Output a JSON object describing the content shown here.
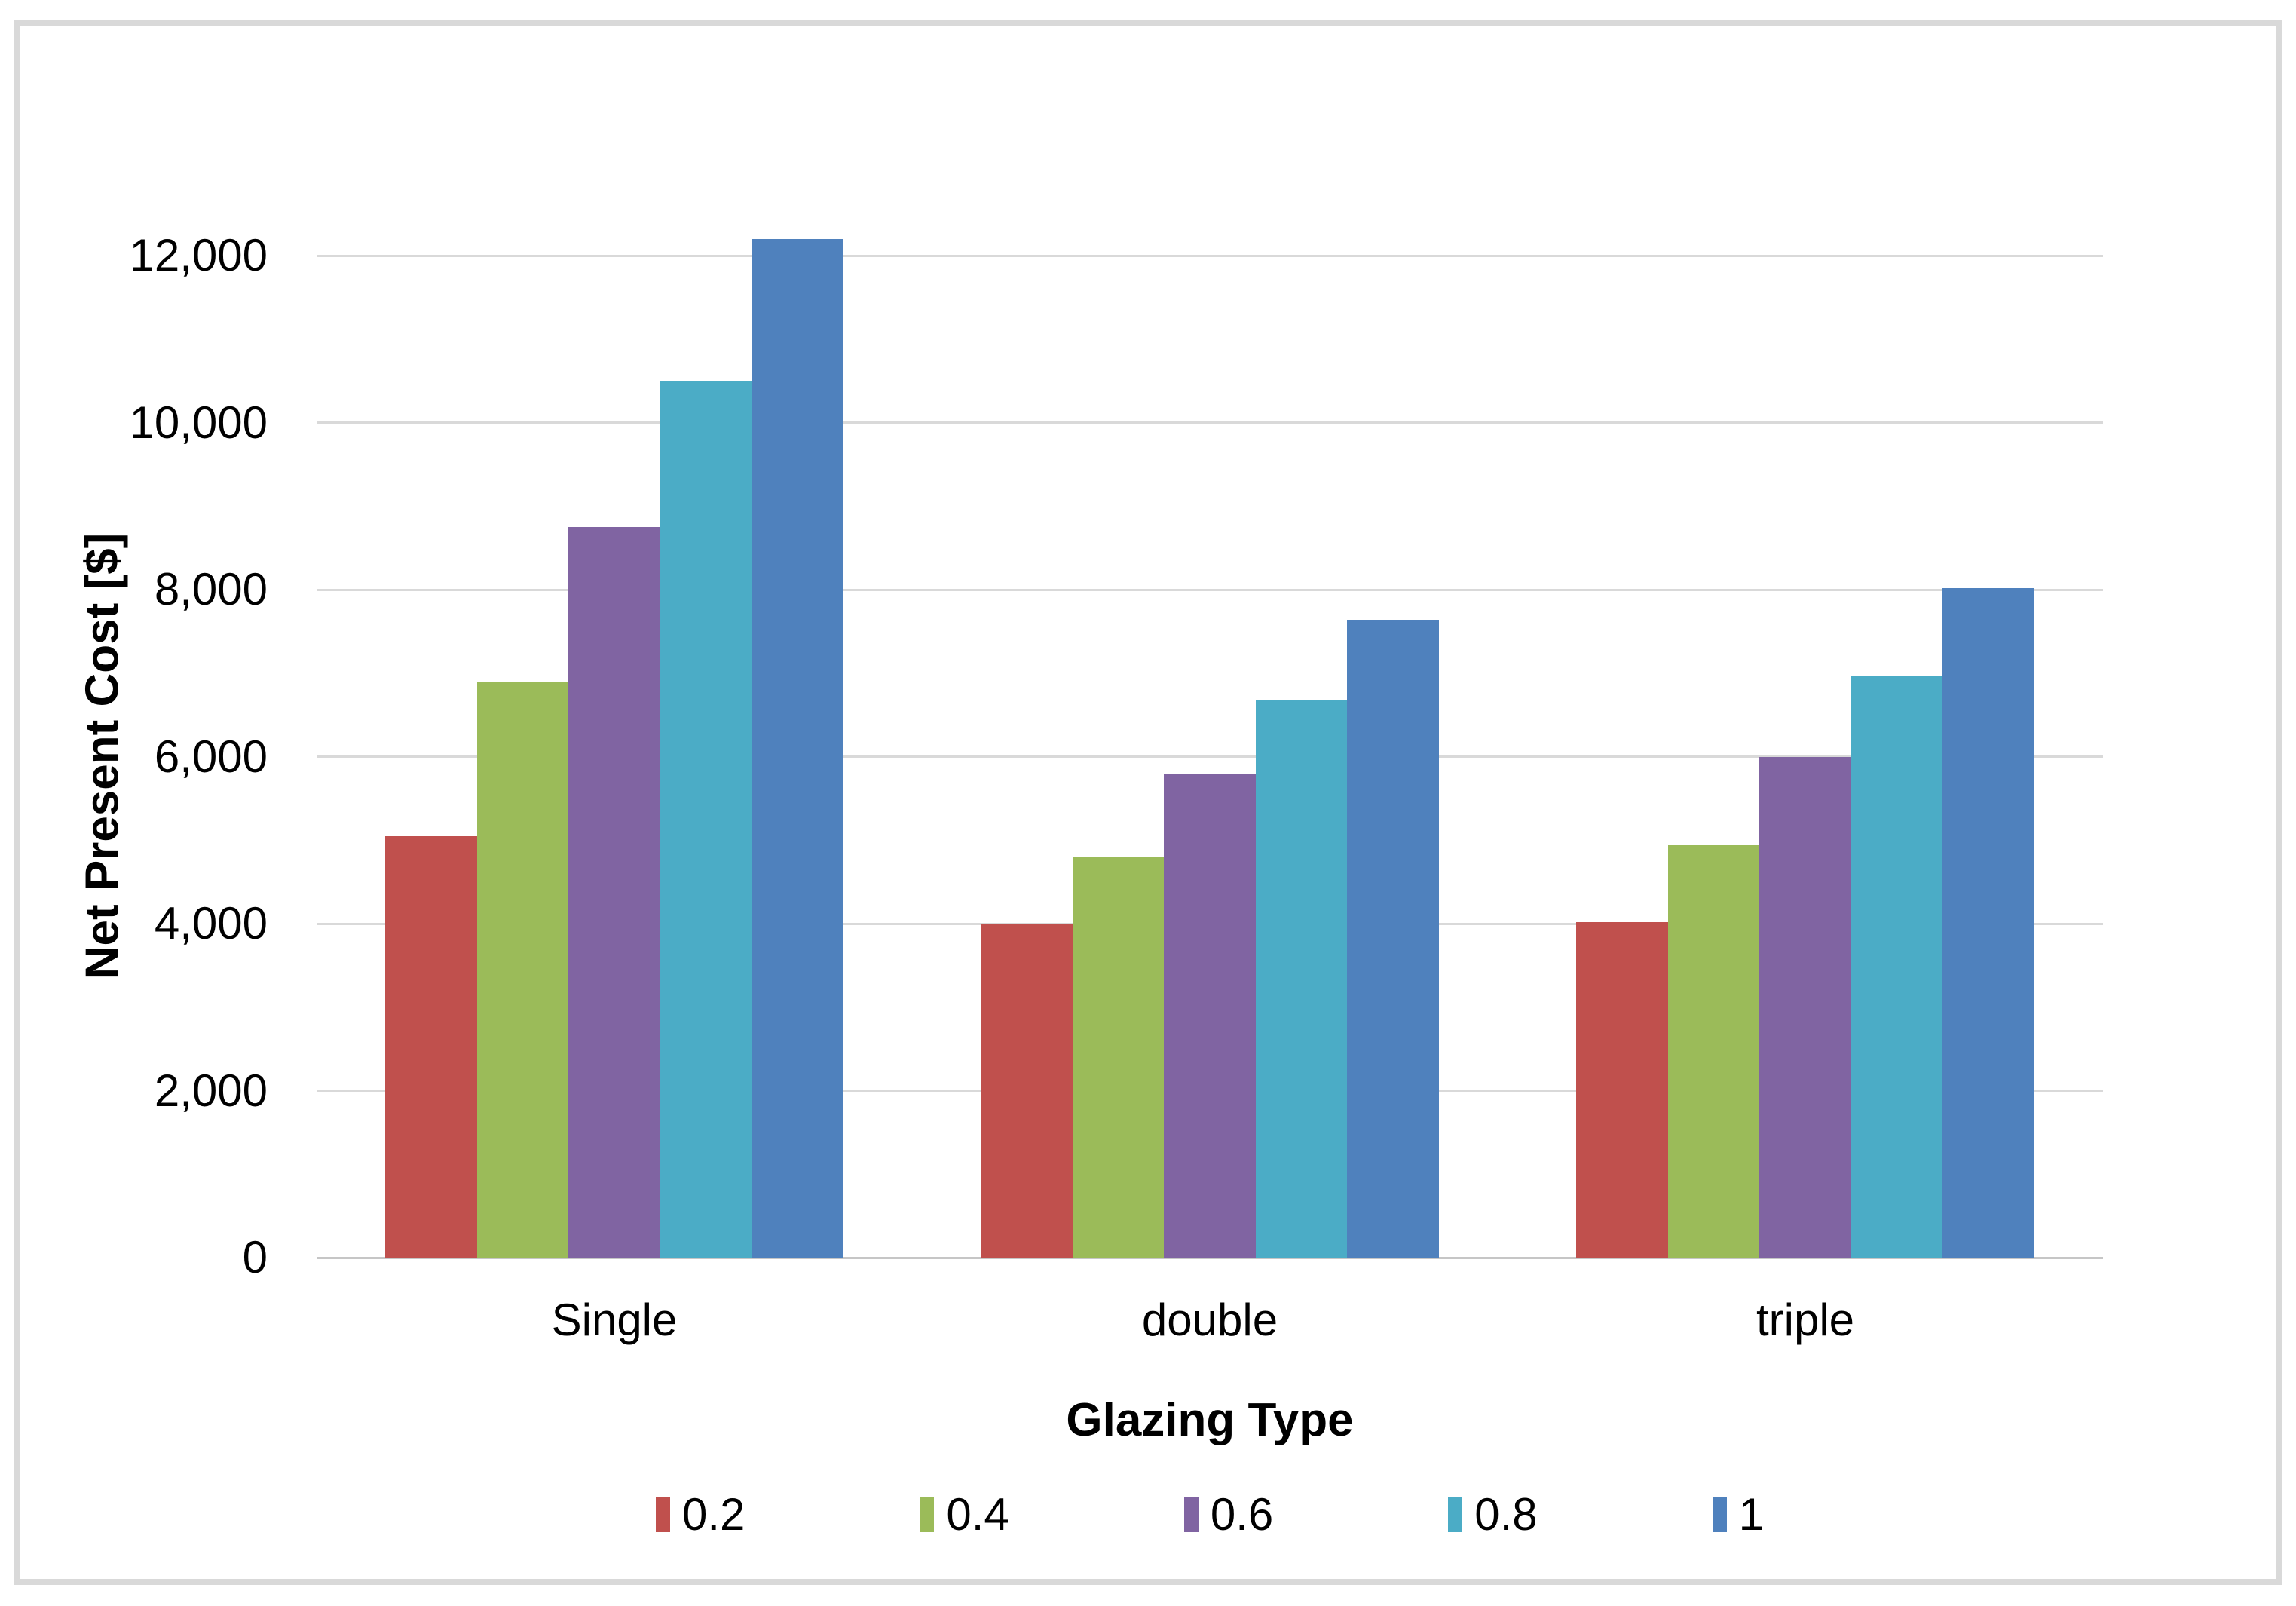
{
  "chart_data": {
    "type": "bar",
    "title": "",
    "xlabel": "Glazing Type",
    "ylabel": "Net Present Cost [$]",
    "categories": [
      "Single",
      "double",
      "triple"
    ],
    "series": [
      {
        "name": "0.2",
        "color": "#C0504D",
        "values": [
          5050,
          4000,
          4020
        ]
      },
      {
        "name": "0.4",
        "color": "#9BBB59",
        "values": [
          6900,
          4800,
          4940
        ]
      },
      {
        "name": "0.6",
        "color": "#8064A2",
        "values": [
          8750,
          5790,
          6000
        ]
      },
      {
        "name": "0.8",
        "color": "#4BACC6",
        "values": [
          10500,
          6680,
          6970
        ]
      },
      {
        "name": "1",
        "color": "#4F81BD",
        "values": [
          12200,
          7640,
          8020
        ]
      }
    ],
    "ylim": [
      0,
      13000
    ],
    "yticks": [
      {
        "value": 0,
        "label": "0"
      },
      {
        "value": 2000,
        "label": "2,000"
      },
      {
        "value": 4000,
        "label": "4,000"
      },
      {
        "value": 6000,
        "label": "6,000"
      },
      {
        "value": 8000,
        "label": "8,000"
      },
      {
        "value": 10000,
        "label": "10,000"
      },
      {
        "value": 12000,
        "label": "12,000"
      }
    ],
    "grid": true,
    "legend_position": "bottom"
  },
  "colors": {
    "gridline": "#D9D9D9",
    "axis_line": "#C6C6C6",
    "frame_border": "#D9D9D9",
    "text": "#000000",
    "background": "#FFFFFF"
  }
}
